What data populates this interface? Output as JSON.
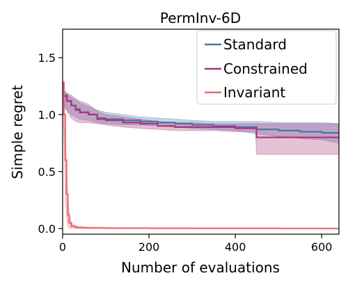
{
  "chart_data": {
    "type": "line",
    "title": "PermInv-6D",
    "xlabel": "Number of evaluations",
    "ylabel": "Simple regret",
    "xlim": [
      0,
      640
    ],
    "ylim": [
      -0.05,
      1.75
    ],
    "xticks": [
      0,
      200,
      400,
      600
    ],
    "yticks": [
      0.0,
      0.5,
      1.0,
      1.5
    ],
    "xtick_labels": [
      "0",
      "200",
      "400",
      "600"
    ],
    "ytick_labels": [
      "0.0",
      "0.5",
      "1.0",
      "1.5"
    ],
    "legend_position": "top-right",
    "grid": false,
    "series": [
      {
        "name": "Standard",
        "color": "#4477aa",
        "x": [
          0,
          3,
          10,
          20,
          30,
          40,
          60,
          80,
          100,
          140,
          180,
          220,
          260,
          300,
          350,
          400,
          450,
          500,
          550,
          600,
          640
        ],
        "y": [
          1.28,
          1.17,
          1.12,
          1.08,
          1.05,
          1.02,
          1.0,
          0.97,
          0.96,
          0.95,
          0.94,
          0.93,
          0.92,
          0.91,
          0.9,
          0.89,
          0.87,
          0.86,
          0.85,
          0.84,
          0.835
        ],
        "lower": [
          1.24,
          1.1,
          1.04,
          1.0,
          0.98,
          0.96,
          0.95,
          0.93,
          0.92,
          0.91,
          0.91,
          0.9,
          0.89,
          0.88,
          0.87,
          0.86,
          0.83,
          0.81,
          0.79,
          0.78,
          0.75
        ],
        "upper": [
          1.32,
          1.22,
          1.18,
          1.15,
          1.13,
          1.1,
          1.07,
          1.04,
          1.02,
          1.0,
          0.98,
          0.97,
          0.96,
          0.95,
          0.94,
          0.94,
          0.94,
          0.93,
          0.93,
          0.93,
          0.92
        ]
      },
      {
        "name": "Constrained",
        "color": "#aa3377",
        "x": [
          0,
          3,
          10,
          20,
          30,
          40,
          60,
          80,
          100,
          140,
          180,
          220,
          260,
          300,
          350,
          400,
          447,
          449,
          500,
          550,
          600,
          640
        ],
        "y": [
          1.28,
          1.16,
          1.12,
          1.08,
          1.04,
          1.02,
          1.0,
          0.96,
          0.95,
          0.93,
          0.92,
          0.9,
          0.89,
          0.89,
          0.89,
          0.88,
          0.88,
          0.8,
          0.8,
          0.8,
          0.8,
          0.8
        ],
        "lower": [
          1.24,
          1.08,
          1.03,
          0.97,
          0.94,
          0.93,
          0.93,
          0.92,
          0.91,
          0.89,
          0.88,
          0.87,
          0.86,
          0.86,
          0.86,
          0.85,
          0.85,
          0.65,
          0.65,
          0.65,
          0.65,
          0.65
        ],
        "upper": [
          1.32,
          1.21,
          1.19,
          1.17,
          1.14,
          1.12,
          1.09,
          1.03,
          1.0,
          0.98,
          0.96,
          0.94,
          0.93,
          0.93,
          0.92,
          0.92,
          0.92,
          0.92,
          0.92,
          0.92,
          0.92,
          0.92
        ]
      },
      {
        "name": "Invariant",
        "color": "#ee6677",
        "x": [
          0,
          3,
          6,
          9,
          12,
          15,
          20,
          30,
          50,
          100,
          200,
          300,
          400,
          500,
          600,
          640
        ],
        "y": [
          1.28,
          1.0,
          0.6,
          0.3,
          0.12,
          0.05,
          0.02,
          0.008,
          0.005,
          0.003,
          0.002,
          0.001,
          0.001,
          0.0005,
          0.0003,
          0.0003
        ],
        "lower": [
          1.24,
          0.85,
          0.35,
          0.1,
          0.02,
          0.005,
          0.002,
          0.001,
          0.0005,
          0.0003,
          0.0002,
          0.0001,
          0.0001,
          0.0001,
          0.0,
          0.0
        ],
        "upper": [
          1.32,
          1.12,
          0.85,
          0.55,
          0.3,
          0.14,
          0.05,
          0.02,
          0.012,
          0.008,
          0.005,
          0.004,
          0.003,
          0.002,
          0.002,
          0.002
        ]
      }
    ]
  }
}
